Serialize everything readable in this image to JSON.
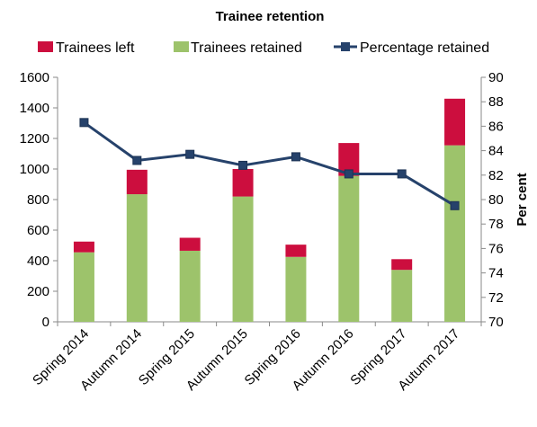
{
  "chart_data": {
    "type": "bar",
    "title": "Trainee retention",
    "categories": [
      "Spring 2014",
      "Autumn 2014",
      "Spring 2015",
      "Autumn 2015",
      "Spring 2016",
      "Autumn 2016",
      "Spring 2017",
      "Autumn 2017"
    ],
    "series": [
      {
        "name": "Trainees left",
        "kind": "bar-stacked",
        "axis": "left",
        "color": "#cc0e3e",
        "values": [
          70,
          160,
          85,
          180,
          80,
          215,
          70,
          305
        ]
      },
      {
        "name": "Trainees retained",
        "kind": "bar-stacked",
        "axis": "left",
        "color": "#9dc36b",
        "values": [
          455,
          835,
          465,
          820,
          425,
          955,
          340,
          1155
        ]
      },
      {
        "name": "Percentage retained",
        "kind": "line",
        "axis": "right",
        "color": "#26426b",
        "values": [
          86.3,
          83.2,
          83.7,
          82.8,
          83.5,
          82.1,
          82.1,
          79.5
        ]
      }
    ],
    "yaxis_left": {
      "range": [
        0,
        1600
      ],
      "ticks": [
        "0",
        "200",
        "400",
        "600",
        "800",
        "1000",
        "1200",
        "1400",
        "1600"
      ]
    },
    "yaxis_right": {
      "label": "Per cent",
      "range": [
        70,
        90
      ],
      "ticks": [
        "70",
        "72",
        "74",
        "76",
        "78",
        "80",
        "82",
        "84",
        "86",
        "88",
        "90"
      ]
    },
    "legend_position": "top",
    "grid": false
  }
}
